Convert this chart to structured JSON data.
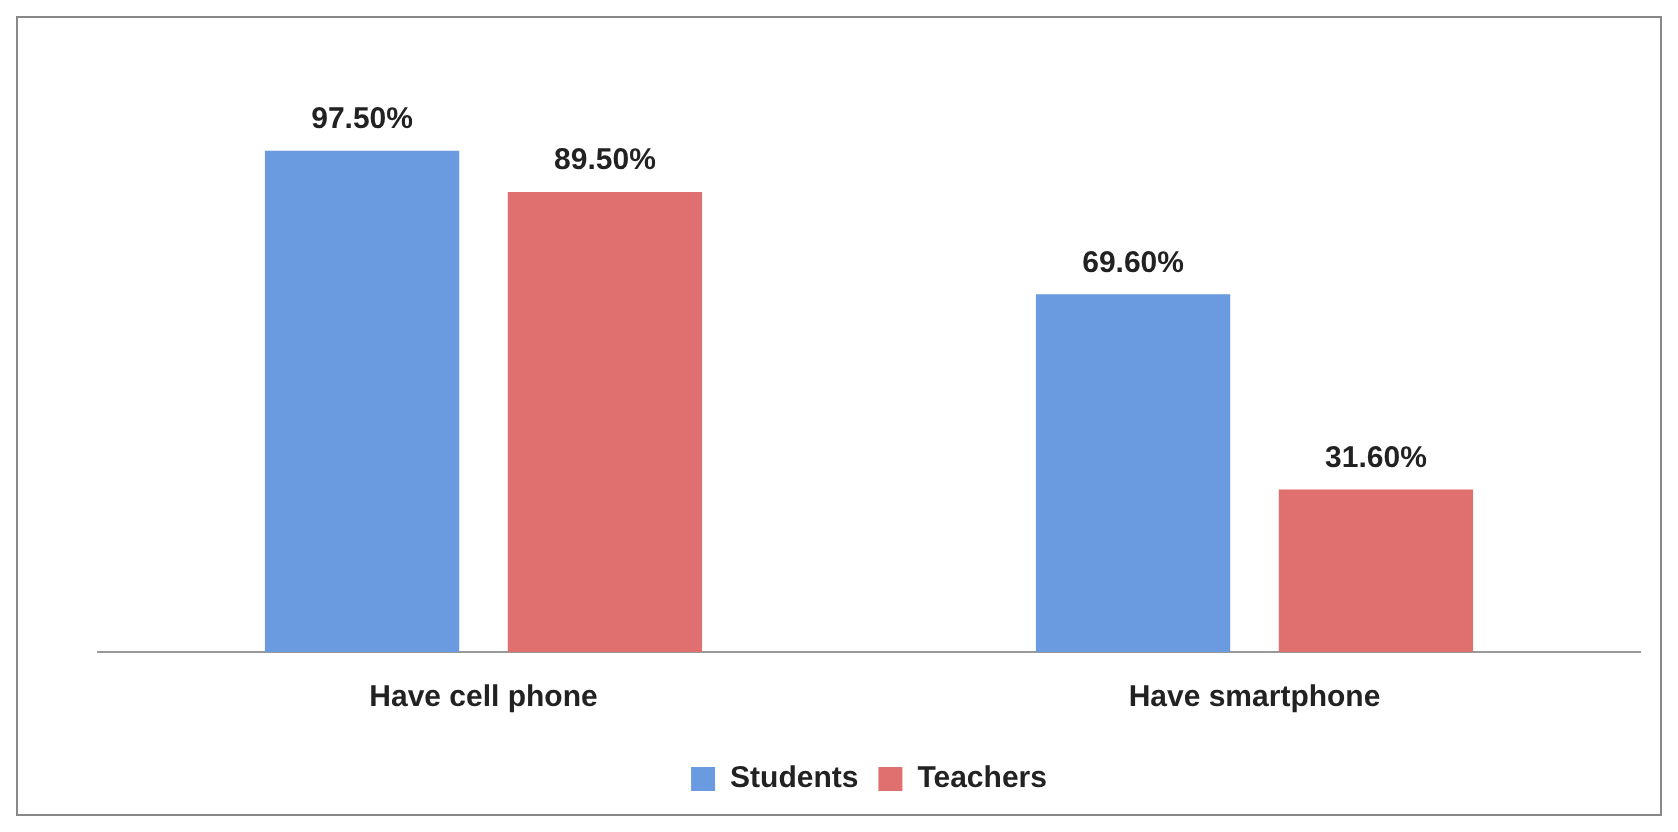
{
  "chart_data": {
    "type": "bar",
    "categories": [
      "Have cell phone",
      "Have smartphone"
    ],
    "series": [
      {
        "name": "Students",
        "color": "#6a9be0",
        "values": [
          97.5,
          69.6
        ],
        "value_labels": [
          "97.50%",
          "69.60%"
        ]
      },
      {
        "name": "Teachers",
        "color": "#e07070",
        "values": [
          89.5,
          31.6
        ],
        "value_labels": [
          "89.50%",
          "31.60%"
        ]
      }
    ],
    "legend": "bottom",
    "grid": false,
    "tick_labels": "x"
  }
}
